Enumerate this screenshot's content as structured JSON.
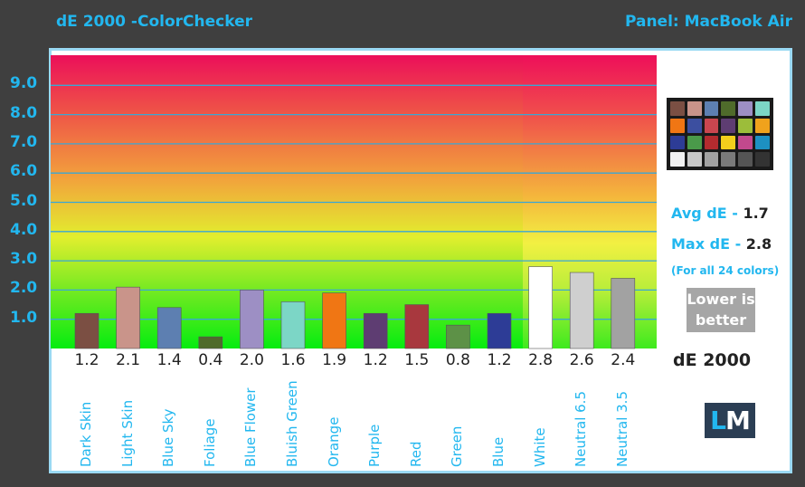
{
  "header": {
    "title": "dE 2000 -ColorChecker",
    "panel": "Panel: MacBook Air"
  },
  "chart_data": {
    "type": "bar",
    "ylim": [
      0,
      10
    ],
    "yticks": [
      "1.0",
      "2.0",
      "3.0",
      "4.0",
      "5.0",
      "6.0",
      "7.0",
      "8.0",
      "9.0"
    ],
    "categories": [
      "Dark Skin",
      "Light Skin",
      "Blue Sky",
      "Foliage",
      "Blue Flower",
      "Bluish Green",
      "Orange",
      "Purple",
      "Red",
      "Green",
      "Blue",
      "White",
      "Neutral 6.5",
      "Neutral 3.5"
    ],
    "values": [
      1.2,
      2.1,
      1.4,
      0.4,
      2.0,
      1.6,
      1.9,
      1.2,
      1.5,
      0.8,
      1.2,
      2.8,
      2.6,
      2.4
    ],
    "value_labels": [
      "1.2",
      "2.1",
      "1.4",
      "0.4",
      "2.0",
      "1.6",
      "1.9",
      "1.2",
      "1.5",
      "0.8",
      "1.2",
      "2.8",
      "2.6",
      "2.4"
    ],
    "colors": [
      "#7b4f43",
      "#c9948a",
      "#5d7fb1",
      "#4f6b2b",
      "#9d8fc4",
      "#7cd6c6",
      "#f07614",
      "#5e3d72",
      "#a8383e",
      "#5d9147",
      "#2d3c96",
      "#ffffff",
      "#cfcfcf",
      "#a2a2a2"
    ],
    "grid": true
  },
  "sidebar": {
    "avg_label": "Avg dE -",
    "avg_value": "1.7",
    "max_label": "Max dE -",
    "max_value": "2.8",
    "note": "(For all 24 colors)",
    "lower_line1": "Lower is",
    "lower_line2": "better",
    "metric": "dE 2000",
    "logo_l": "L",
    "logo_m": "M",
    "checker_colors": [
      "#7b4f43",
      "#c9948a",
      "#5d7fb1",
      "#4f6b2b",
      "#9d8fc4",
      "#7cd6c6",
      "#f07614",
      "#3c4fa0",
      "#c9464f",
      "#5e3d72",
      "#9cbd3a",
      "#f0a21c",
      "#2d3c96",
      "#4a9a4a",
      "#b32b2f",
      "#f2cf1c",
      "#c2498d",
      "#1d90c2",
      "#f2f2f2",
      "#c8c8c8",
      "#a2a2a2",
      "#7a7a7a",
      "#555555",
      "#333333"
    ]
  }
}
